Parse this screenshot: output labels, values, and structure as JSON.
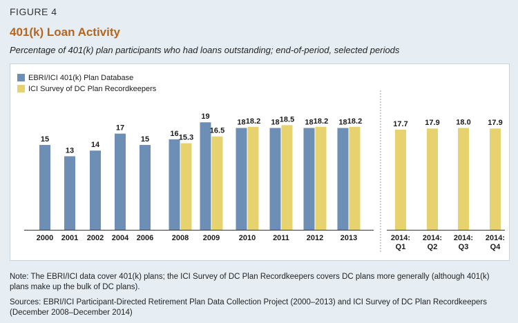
{
  "figure_label": "FIGURE 4",
  "chart_data": {
    "type": "bar",
    "title": "401(k) Loan Activity",
    "subtitle": "Percentage of 401(k) plan participants who had loans outstanding; end-of-period, selected periods",
    "legend": {
      "placement": "top-left",
      "entries": [
        "EBRI/ICI 401(k) Plan Database",
        "ICI Survey of DC Plan Recordkeepers"
      ]
    },
    "colors": {
      "ebri": "#6d8fb6",
      "ici": "#e6d36f"
    },
    "ylim": [
      0,
      22
    ],
    "categories": [
      [
        "2000"
      ],
      [
        "2001"
      ],
      [
        "2002"
      ],
      [
        "2004"
      ],
      [
        "2006"
      ],
      [
        "2008"
      ],
      [
        "2009"
      ],
      [
        "2010"
      ],
      [
        "2011"
      ],
      [
        "2012"
      ],
      [
        "2013"
      ],
      [
        "2014:",
        "Q1"
      ],
      [
        "2014:",
        "Q2"
      ],
      [
        "2014:",
        "Q3"
      ],
      [
        "2014:",
        "Q4"
      ]
    ],
    "series": [
      {
        "name": "EBRI/ICI 401(k) Plan Database",
        "values": [
          15,
          13,
          14,
          17,
          15,
          16,
          19,
          18,
          18,
          18,
          18,
          null,
          null,
          null,
          null
        ],
        "labels": [
          "15",
          "13",
          "14",
          "17",
          "15",
          "16",
          "19",
          "18",
          "18",
          "18",
          "18",
          null,
          null,
          null,
          null
        ]
      },
      {
        "name": "ICI Survey of DC Plan Recordkeepers",
        "values": [
          null,
          null,
          null,
          null,
          null,
          15.3,
          16.5,
          18.2,
          18.5,
          18.2,
          18.2,
          17.7,
          17.9,
          18.0,
          17.9
        ],
        "labels": [
          null,
          null,
          null,
          null,
          null,
          "15.3",
          "16.5",
          "18.2",
          "18.5",
          "18.2",
          "18.2",
          "17.7",
          "17.9",
          "18.0",
          "17.9"
        ]
      }
    ],
    "grid": false
  },
  "note": "Note: The EBRI/ICI data cover 401(k) plans; the ICI Survey of DC Plan Recordkeepers covers DC plans more generally (although 401(k) plans make up the bulk of DC plans).",
  "sources": "Sources: EBRI/ICI Participant-Directed Retirement Plan Data Collection Project (2000–2013) and ICI Survey of DC Plan Recordkeepers (December 2008–December 2014)"
}
